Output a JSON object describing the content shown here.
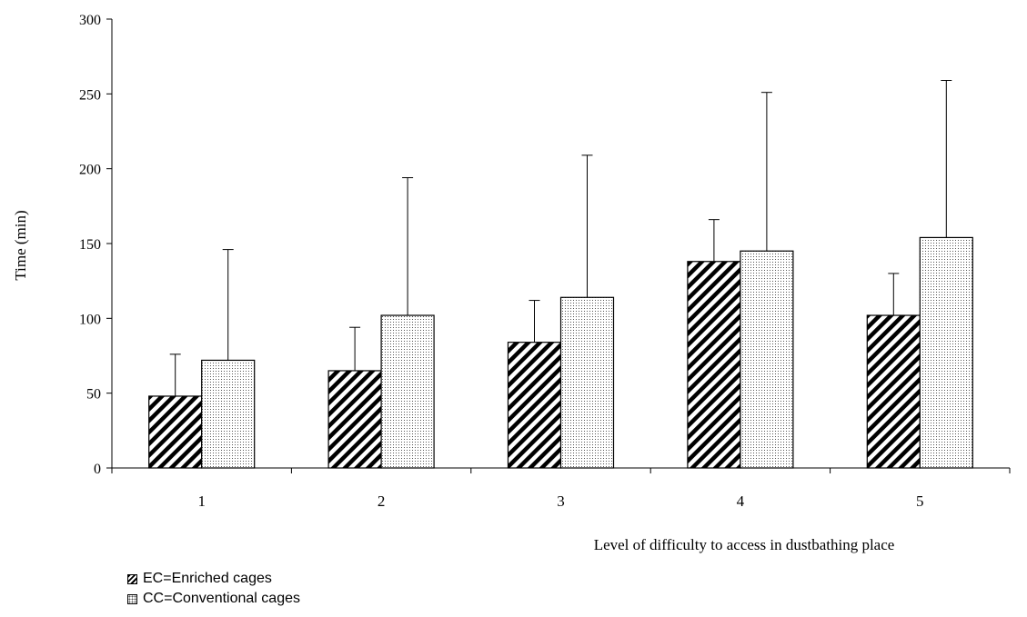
{
  "chart_data": {
    "type": "bar",
    "title": "",
    "xlabel": "Level of difficulty to access in dustbathing place",
    "ylabel": "Time (min)",
    "ylim": [
      0,
      300
    ],
    "yticks": [
      0,
      50,
      100,
      150,
      200,
      250,
      300
    ],
    "categories": [
      "1",
      "2",
      "3",
      "4",
      "5"
    ],
    "grid": false,
    "legend_position": "bottom-left",
    "series": [
      {
        "name": "EC=Enriched cages",
        "pattern": "diagonal-hatch",
        "color": "#000000",
        "values": [
          48,
          65,
          84,
          138,
          102
        ],
        "error_upper": [
          76,
          94,
          112,
          166,
          130
        ]
      },
      {
        "name": "CC=Conventional cages",
        "pattern": "dots",
        "color": "#555555",
        "values": [
          72,
          102,
          114,
          145,
          154
        ],
        "error_upper": [
          146,
          194,
          209,
          251,
          259
        ]
      }
    ]
  }
}
